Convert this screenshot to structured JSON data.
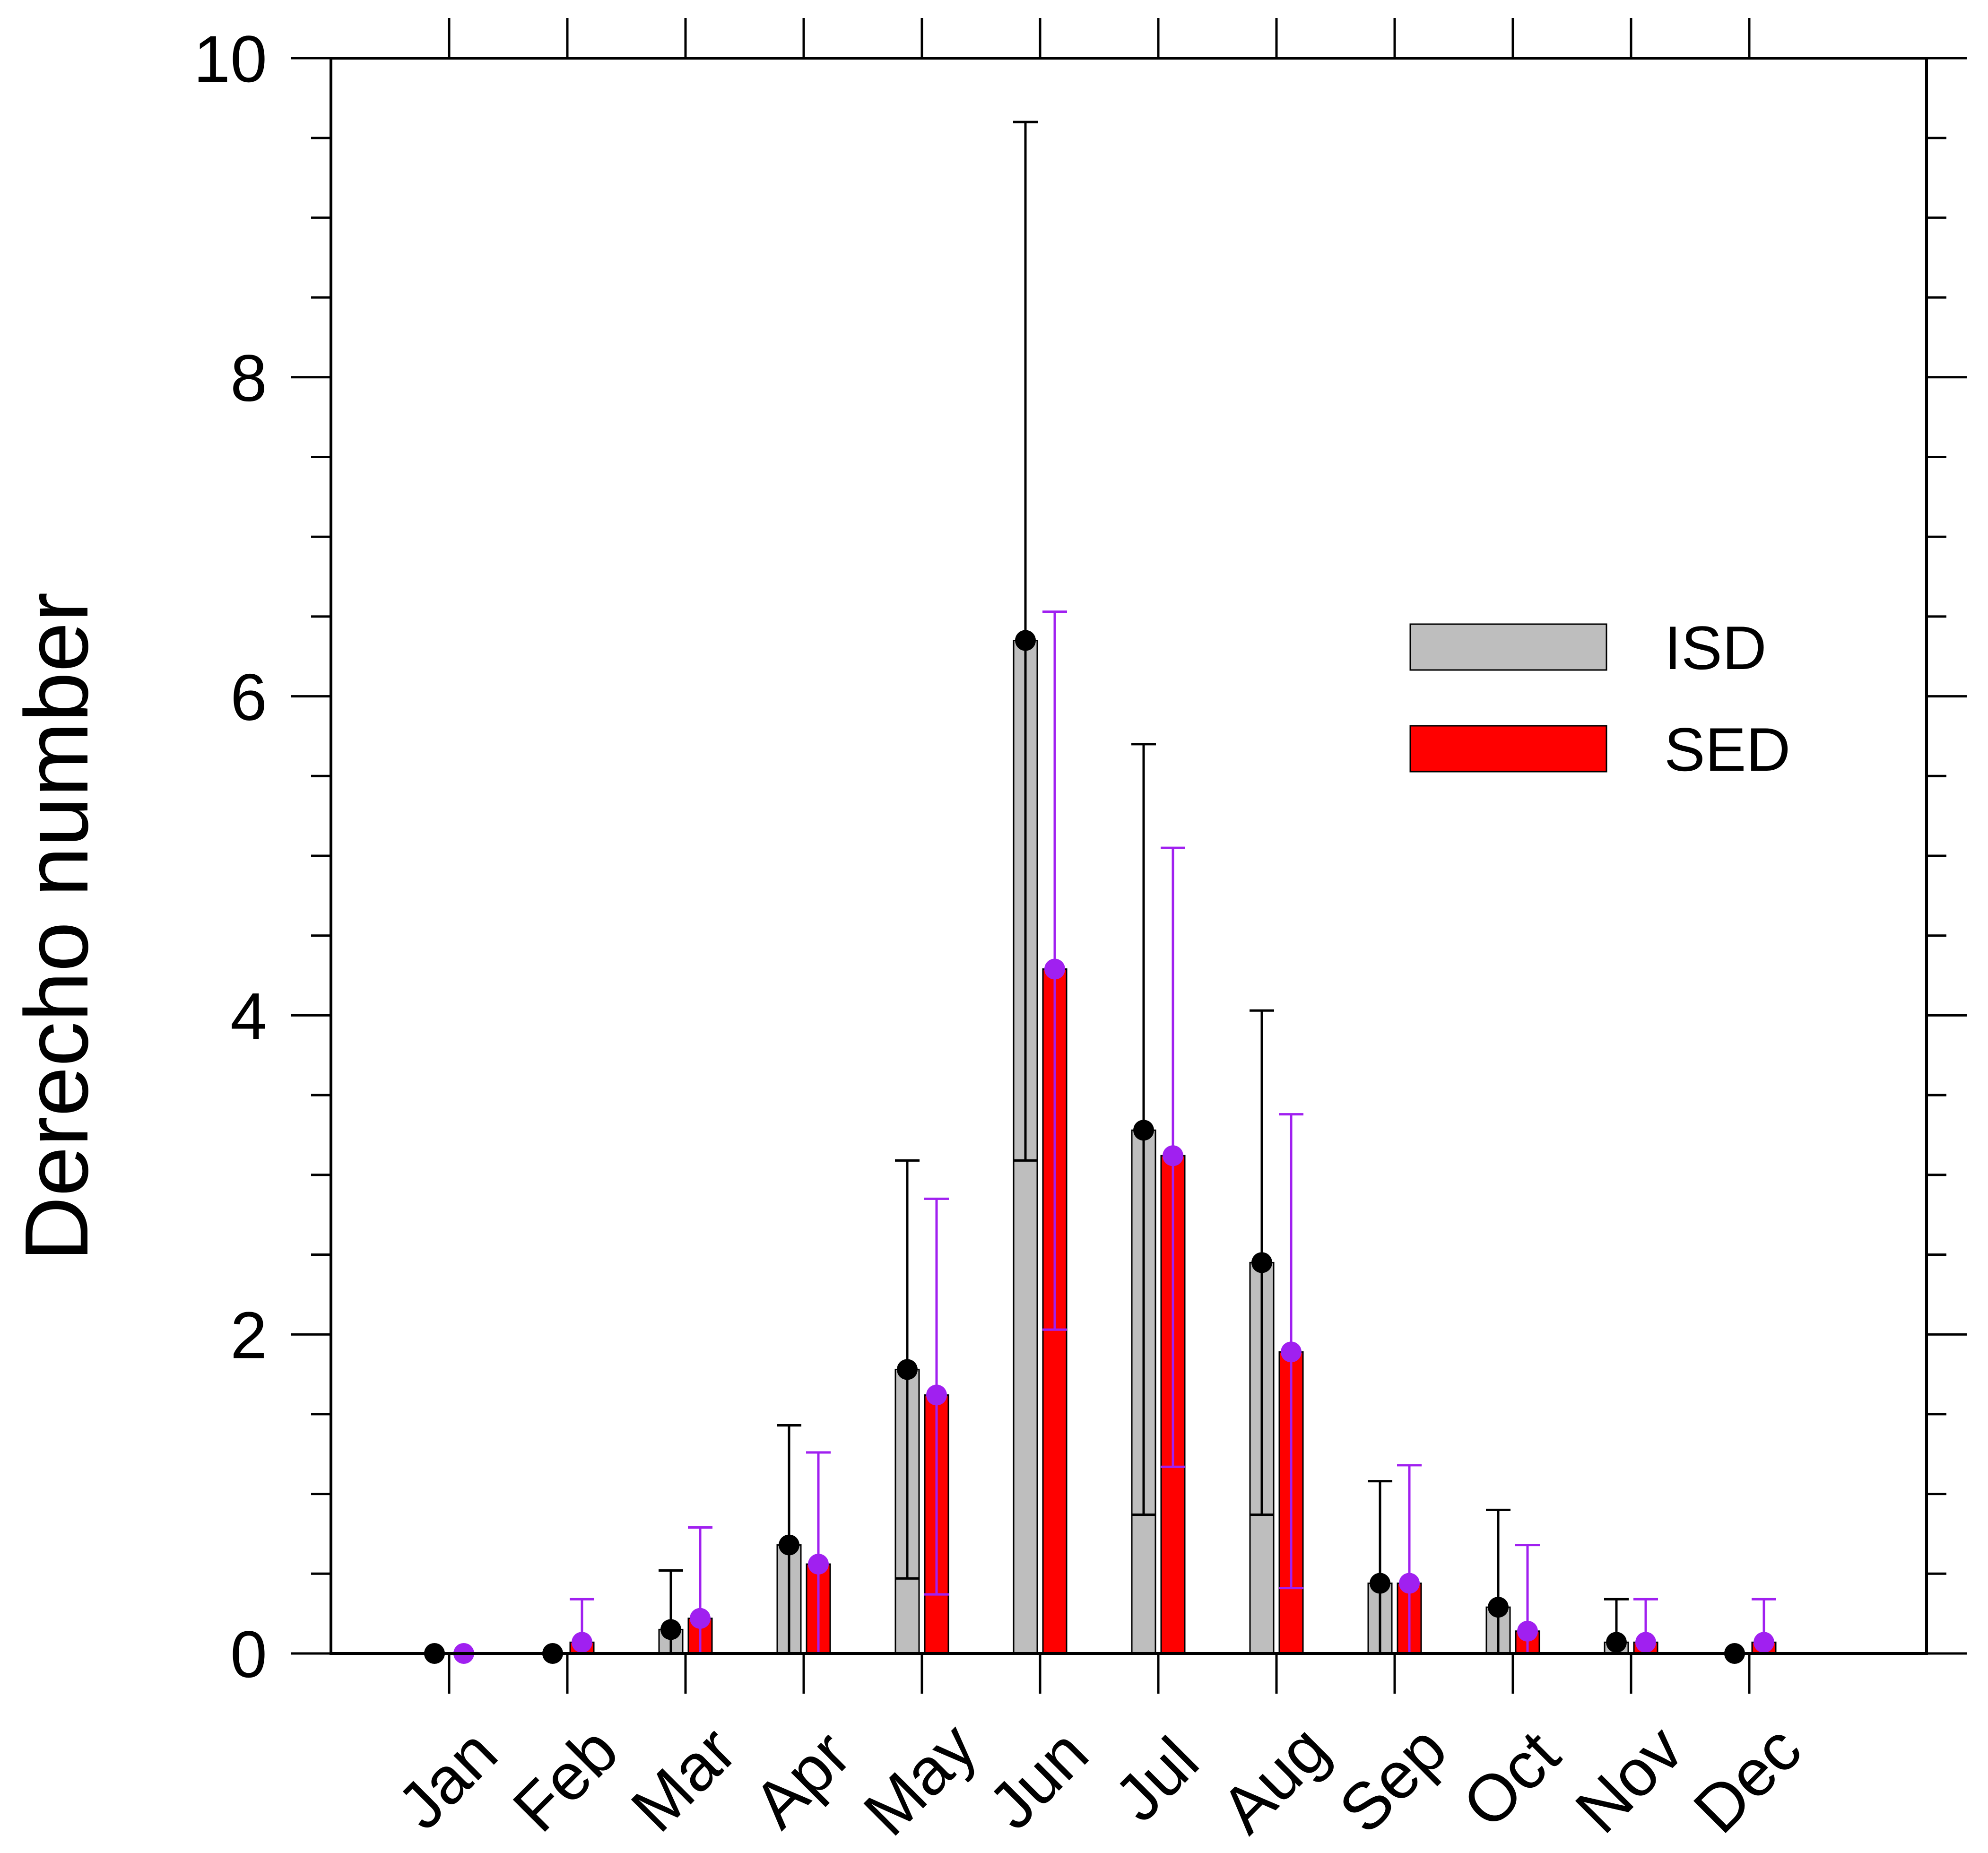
{
  "chart_data": {
    "type": "bar",
    "title": "",
    "xlabel": "",
    "ylabel": "Derecho number",
    "ylim": [
      0,
      10
    ],
    "yticks": [
      "0",
      "2",
      "4",
      "6",
      "8",
      "10"
    ],
    "categories": [
      "Jan",
      "Feb",
      "Mar",
      "Apr",
      "May",
      "Jun",
      "Jul",
      "Aug",
      "Sep",
      "Oct",
      "Nov",
      "Dec"
    ],
    "legend_position": "right",
    "series": [
      {
        "name": "ISD",
        "color": "#bebebe",
        "error_color": "#000000",
        "values": [
          0.0,
          0.0,
          0.15,
          0.68,
          1.78,
          6.35,
          3.28,
          2.45,
          0.44,
          0.29,
          0.07,
          0.0
        ],
        "err_low": [
          0.0,
          0.0,
          0.0,
          0.0,
          0.47,
          3.09,
          0.87,
          0.87,
          0.0,
          0.0,
          0.0,
          0.0
        ],
        "err_high": [
          0.0,
          0.0,
          0.52,
          1.43,
          3.09,
          9.6,
          5.7,
          4.03,
          1.08,
          0.9,
          0.34,
          0.0
        ]
      },
      {
        "name": "SED",
        "color": "#ff0000",
        "error_color": "#a020f0",
        "values": [
          0.0,
          0.07,
          0.22,
          0.56,
          1.62,
          4.29,
          3.12,
          1.89,
          0.44,
          0.14,
          0.07,
          0.07
        ],
        "err_low": [
          0.0,
          0.0,
          0.0,
          0.0,
          0.37,
          2.03,
          1.17,
          0.41,
          0.0,
          0.0,
          0.0,
          0.0
        ],
        "err_high": [
          0.0,
          0.34,
          0.79,
          1.26,
          2.85,
          6.53,
          5.05,
          3.38,
          1.18,
          0.68,
          0.34,
          0.34
        ]
      }
    ]
  }
}
